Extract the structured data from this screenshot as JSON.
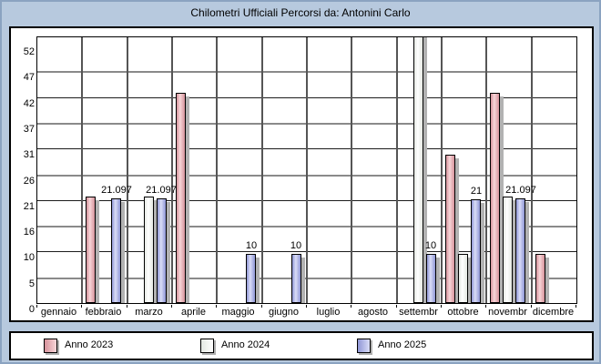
{
  "window": {
    "title": "Chilometri Ufficiali Percorsi da: Antonini Carlo"
  },
  "chart_data": {
    "type": "bar",
    "title": "Chilometri Ufficiali Percorsi da: Antonini Carlo",
    "categories": [
      "gennaio",
      "febbraio",
      "marzo",
      "aprile",
      "maggio",
      "giugno",
      "luglio",
      "agosto",
      "settembr",
      "ottobre",
      "novembr",
      "dicembre"
    ],
    "y_tick_labels": [
      "0",
      "5",
      "10",
      "16",
      "21",
      "26",
      "31",
      "37",
      "42",
      "47",
      "52"
    ],
    "ylim": [
      0,
      52
    ],
    "grid": "on",
    "legend_position": "bottom",
    "note": "Bars without printed labels are visual estimates; Anno 2024 settembre bar is clipped at the top of the plot (value exceeds 52).",
    "series": [
      {
        "name": "Anno 2023",
        "color_edge": "#d6929b",
        "color_mid": "#f7d6d9",
        "values": [
          null,
          21.5,
          null,
          42.5,
          null,
          null,
          null,
          null,
          null,
          30,
          42.5,
          10
        ],
        "labels": [
          null,
          null,
          null,
          null,
          null,
          null,
          null,
          null,
          null,
          null,
          null,
          null
        ]
      },
      {
        "name": "Anno 2024",
        "color_edge": "#e4e8e2",
        "color_mid": "#ffffff",
        "values": [
          null,
          null,
          21.5,
          null,
          null,
          null,
          null,
          null,
          55,
          10,
          21.5,
          null
        ],
        "labels": [
          null,
          null,
          null,
          null,
          null,
          null,
          null,
          null,
          null,
          null,
          null,
          null
        ],
        "clipped": [
          false,
          false,
          false,
          false,
          false,
          false,
          false,
          false,
          true,
          false,
          false,
          false
        ]
      },
      {
        "name": "Anno 2025",
        "color_edge": "#8f96d6",
        "color_mid": "#daddf7",
        "values": [
          null,
          21.097,
          21.097,
          null,
          10,
          10,
          null,
          null,
          10,
          21,
          21.097,
          null
        ],
        "labels": [
          null,
          "21.097",
          "21.097",
          null,
          "10",
          "10",
          null,
          null,
          "10",
          "21",
          "21.097",
          null
        ]
      }
    ],
    "legend": [
      "Anno 2023",
      "Anno 2024",
      "Anno 2025"
    ]
  },
  "colors": {
    "background": "#b7c9de",
    "plot_background": "#ffffff",
    "grid_black": "#1c1c1c",
    "grid_gray": "#8a8a8a",
    "grid_vertical": "#555555",
    "bar_shadow": "#b2b2b2",
    "text": "#000000"
  }
}
